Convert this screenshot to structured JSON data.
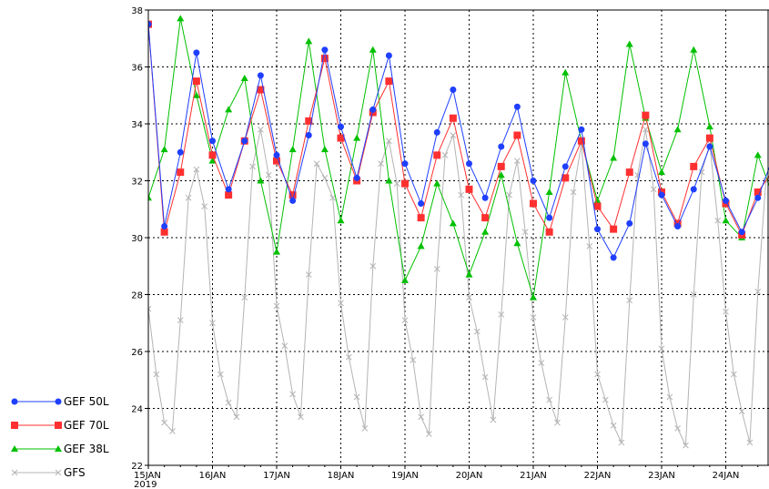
{
  "chart_data": {
    "type": "line",
    "title": "",
    "xlabel": "",
    "ylabel": "",
    "ylim": [
      22,
      38
    ],
    "y_ticks": [
      22,
      24,
      26,
      28,
      30,
      32,
      34,
      36,
      38
    ],
    "x_start_label": "2019",
    "x_ticks": [
      "15JAN",
      "16JAN",
      "17JAN",
      "18JAN",
      "19JAN",
      "20JAN",
      "21JAN",
      "22JAN",
      "23JAN",
      "24JAN"
    ],
    "grid": "dashed",
    "legend_position": "bottom-left",
    "series": [
      {
        "name": "GEF 50L",
        "color": "#1f3fff",
        "marker": "circle",
        "points": [
          [
            0,
            37.5
          ],
          [
            0.25,
            30.4
          ],
          [
            0.5,
            33.0
          ],
          [
            0.75,
            36.5
          ],
          [
            1.0,
            33.4
          ],
          [
            1.25,
            31.7
          ],
          [
            1.5,
            33.4
          ],
          [
            1.75,
            35.7
          ],
          [
            2.0,
            32.9
          ],
          [
            2.25,
            31.3
          ],
          [
            2.5,
            33.6
          ],
          [
            2.75,
            36.6
          ],
          [
            3.0,
            33.9
          ],
          [
            3.25,
            32.1
          ],
          [
            3.5,
            34.5
          ],
          [
            3.75,
            36.4
          ],
          [
            4.0,
            32.6
          ],
          [
            4.25,
            31.2
          ],
          [
            4.5,
            33.7
          ],
          [
            4.75,
            35.2
          ],
          [
            5.0,
            32.6
          ],
          [
            5.25,
            31.4
          ],
          [
            5.5,
            33.2
          ],
          [
            5.75,
            34.6
          ],
          [
            6.0,
            32.0
          ],
          [
            6.25,
            30.7
          ],
          [
            6.5,
            32.5
          ],
          [
            6.75,
            33.8
          ],
          [
            7.0,
            30.3
          ],
          [
            7.25,
            29.3
          ],
          [
            7.5,
            30.5
          ],
          [
            7.75,
            33.3
          ],
          [
            8.0,
            31.5
          ],
          [
            8.25,
            30.4
          ],
          [
            8.5,
            31.7
          ],
          [
            8.75,
            33.2
          ],
          [
            9.0,
            31.3
          ],
          [
            9.25,
            30.2
          ],
          [
            9.5,
            31.4
          ],
          [
            9.75,
            32.9
          ]
        ]
      },
      {
        "name": "GEF 70L",
        "color": "#ff3030",
        "marker": "square",
        "points": [
          [
            0,
            37.5
          ],
          [
            0.25,
            30.2
          ],
          [
            0.5,
            32.3
          ],
          [
            0.75,
            35.5
          ],
          [
            1.0,
            32.9
          ],
          [
            1.25,
            31.5
          ],
          [
            1.5,
            33.4
          ],
          [
            1.75,
            35.2
          ],
          [
            2.0,
            32.7
          ],
          [
            2.25,
            31.5
          ],
          [
            2.5,
            34.1
          ],
          [
            2.75,
            36.3
          ],
          [
            3.0,
            33.5
          ],
          [
            3.25,
            32.0
          ],
          [
            3.5,
            34.4
          ],
          [
            3.75,
            35.5
          ],
          [
            4.0,
            31.9
          ],
          [
            4.25,
            30.7
          ],
          [
            4.5,
            32.9
          ],
          [
            4.75,
            34.2
          ],
          [
            5.0,
            31.7
          ],
          [
            5.25,
            30.7
          ],
          [
            5.5,
            32.5
          ],
          [
            5.75,
            33.6
          ],
          [
            6.0,
            31.2
          ],
          [
            6.25,
            30.2
          ],
          [
            6.5,
            32.1
          ],
          [
            6.75,
            33.4
          ],
          [
            7.0,
            31.1
          ],
          [
            7.25,
            30.3
          ],
          [
            7.5,
            32.3
          ],
          [
            7.75,
            34.3
          ],
          [
            8.0,
            31.6
          ],
          [
            8.25,
            30.5
          ],
          [
            8.5,
            32.5
          ],
          [
            8.75,
            33.5
          ],
          [
            9.0,
            31.2
          ],
          [
            9.25,
            30.1
          ],
          [
            9.5,
            31.6
          ],
          [
            9.75,
            32.4
          ]
        ]
      },
      {
        "name": "GEF 38L",
        "color": "#00c000",
        "marker": "triangle",
        "points": [
          [
            0,
            31.4
          ],
          [
            0.25,
            33.1
          ],
          [
            0.5,
            37.7
          ],
          [
            0.75,
            35.0
          ],
          [
            1.0,
            32.7
          ],
          [
            1.25,
            34.5
          ],
          [
            1.5,
            35.6
          ],
          [
            1.75,
            32.0
          ],
          [
            2.0,
            29.5
          ],
          [
            2.25,
            33.1
          ],
          [
            2.5,
            36.9
          ],
          [
            2.75,
            33.1
          ],
          [
            3.0,
            30.6
          ],
          [
            3.25,
            33.5
          ],
          [
            3.5,
            36.6
          ],
          [
            3.75,
            32.0
          ],
          [
            4.0,
            28.5
          ],
          [
            4.25,
            29.7
          ],
          [
            4.5,
            31.9
          ],
          [
            4.75,
            30.5
          ],
          [
            5.0,
            28.7
          ],
          [
            5.25,
            30.2
          ],
          [
            5.5,
            32.2
          ],
          [
            5.75,
            29.8
          ],
          [
            6.0,
            27.9
          ],
          [
            6.25,
            31.6
          ],
          [
            6.5,
            35.8
          ],
          [
            6.75,
            33.4
          ],
          [
            7.0,
            31.3
          ],
          [
            7.25,
            32.8
          ],
          [
            7.5,
            36.8
          ],
          [
            7.75,
            34.2
          ],
          [
            8.0,
            32.3
          ],
          [
            8.25,
            33.8
          ],
          [
            8.5,
            36.6
          ],
          [
            8.75,
            33.9
          ],
          [
            9.0,
            30.6
          ],
          [
            9.25,
            30.0
          ],
          [
            9.5,
            32.9
          ],
          [
            9.75,
            31.4
          ]
        ]
      },
      {
        "name": "GFS",
        "color": "#b4b4b4",
        "marker": "x",
        "points": [
          [
            0,
            27.5
          ],
          [
            0.125,
            25.2
          ],
          [
            0.25,
            23.5
          ],
          [
            0.375,
            23.2
          ],
          [
            0.5,
            27.1
          ],
          [
            0.625,
            31.4
          ],
          [
            0.75,
            32.4
          ],
          [
            0.875,
            31.1
          ],
          [
            1.0,
            27.0
          ],
          [
            1.125,
            25.2
          ],
          [
            1.25,
            24.2
          ],
          [
            1.375,
            23.7
          ],
          [
            1.5,
            27.9
          ],
          [
            1.625,
            32.5
          ],
          [
            1.75,
            33.8
          ],
          [
            1.875,
            32.2
          ],
          [
            2.0,
            27.6
          ],
          [
            2.125,
            26.2
          ],
          [
            2.25,
            24.5
          ],
          [
            2.375,
            23.7
          ],
          [
            2.5,
            28.7
          ],
          [
            2.625,
            32.6
          ],
          [
            2.75,
            32.1
          ],
          [
            2.875,
            31.4
          ],
          [
            3.0,
            27.7
          ],
          [
            3.125,
            25.8
          ],
          [
            3.25,
            24.4
          ],
          [
            3.375,
            23.3
          ],
          [
            3.5,
            29.0
          ],
          [
            3.625,
            32.6
          ],
          [
            3.75,
            33.4
          ],
          [
            3.875,
            31.9
          ],
          [
            4.0,
            27.1
          ],
          [
            4.125,
            25.7
          ],
          [
            4.25,
            23.7
          ],
          [
            4.375,
            23.1
          ],
          [
            4.5,
            28.9
          ],
          [
            4.625,
            32.9
          ],
          [
            4.75,
            33.6
          ],
          [
            4.875,
            31.5
          ],
          [
            5.0,
            27.9
          ],
          [
            5.125,
            26.7
          ],
          [
            5.25,
            25.1
          ],
          [
            5.375,
            23.6
          ],
          [
            5.5,
            27.3
          ],
          [
            5.625,
            31.5
          ],
          [
            5.75,
            32.7
          ],
          [
            5.875,
            30.2
          ],
          [
            6.0,
            27.2
          ],
          [
            6.125,
            25.6
          ],
          [
            6.25,
            24.3
          ],
          [
            6.375,
            23.5
          ],
          [
            6.5,
            27.2
          ],
          [
            6.625,
            31.6
          ],
          [
            6.75,
            33.3
          ],
          [
            6.875,
            29.7
          ],
          [
            7.0,
            25.2
          ],
          [
            7.125,
            24.3
          ],
          [
            7.25,
            23.4
          ],
          [
            7.375,
            22.8
          ],
          [
            7.5,
            27.8
          ],
          [
            7.625,
            32.2
          ],
          [
            7.75,
            33.8
          ],
          [
            7.875,
            31.7
          ],
          [
            8.0,
            26.1
          ],
          [
            8.125,
            24.4
          ],
          [
            8.25,
            23.3
          ],
          [
            8.375,
            22.7
          ],
          [
            8.5,
            28.0
          ],
          [
            8.625,
            32.3
          ],
          [
            8.75,
            33.3
          ],
          [
            8.875,
            30.6
          ],
          [
            9.0,
            27.4
          ],
          [
            9.125,
            25.2
          ],
          [
            9.25,
            23.9
          ],
          [
            9.375,
            22.8
          ],
          [
            9.5,
            28.1
          ],
          [
            9.625,
            32.0
          ],
          [
            9.75,
            32.3
          ]
        ]
      }
    ]
  }
}
